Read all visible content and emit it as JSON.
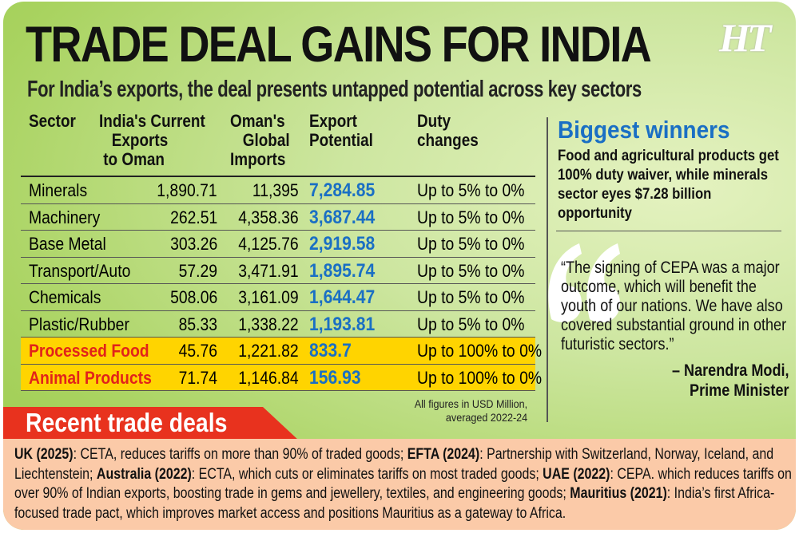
{
  "title": "TRADE DEAL GAINS FOR INDIA",
  "logo": "HT",
  "subtitle": "For India’s exports, the deal presents untapped potential across key sectors",
  "table": {
    "headers": [
      "Sector",
      "India's Current\n   Exports\n to Oman",
      "Oman's\n   Global\nImports",
      "Export\nPotential",
      "Duty\nchanges"
    ],
    "rows": [
      {
        "sector": "Minerals",
        "current": "1,890.71",
        "oman": "11,395",
        "potential": "7,284.85",
        "duty": "Up to 5% to 0%",
        "highlight": false
      },
      {
        "sector": "Machinery",
        "current": "262.51",
        "oman": "4,358.36",
        "potential": "3,687.44",
        "duty": "Up to 5% to 0%",
        "highlight": false
      },
      {
        "sector": "Base Metal",
        "current": "303.26",
        "oman": "4,125.76",
        "potential": "2,919.58",
        "duty": "Up to 5% to 0%",
        "highlight": false
      },
      {
        "sector": "Transport/Auto",
        "current": "57.29",
        "oman": "3,471.91",
        "potential": "1,895.74",
        "duty": "Up to 5% to 0%",
        "highlight": false
      },
      {
        "sector": "Chemicals",
        "current": "508.06",
        "oman": "3,161.09",
        "potential": "1,644.47",
        "duty": "Up to 5% to 0%",
        "highlight": false
      },
      {
        "sector": "Plastic/Rubber",
        "current": "85.33",
        "oman": "1,338.22",
        "potential": "1,193.81",
        "duty": "Up to 5% to 0%",
        "highlight": false
      },
      {
        "sector": "Processed Food",
        "current": "45.76",
        "oman": "1,221.82",
        "potential": "833.7",
        "duty": "Up to 100% to 0%",
        "highlight": true
      },
      {
        "sector": "Animal Products",
        "current": "71.74",
        "oman": "1,146.84",
        "potential": "156.93",
        "duty": "Up to 100% to 0%",
        "highlight": true
      }
    ],
    "note_line1": "All figures in USD Million,",
    "note_line2": "averaged 2022-24"
  },
  "winners": {
    "heading": "Biggest winners",
    "text": "Food and agricultural products get 100% duty waiver, while minerals sector eyes $7.28 billion opportunity"
  },
  "quote": {
    "text": "“The signing of CEPA was a major outcome, which will benefit the youth of our nations. We have also covered substantial ground in other futuristic sectors.”",
    "name": "– Narendra Modi,",
    "role": "Prime Minister"
  },
  "recent": {
    "heading": "Recent trade deals",
    "items": [
      {
        "label": "UK (2025)",
        "text": ": CETA, reduces tariffs on more than 90% of traded goods; "
      },
      {
        "label": "EFTA (2024)",
        "text": ": Partnership with Switzerland, Norway, Iceland, and Liechtenstein; "
      },
      {
        "label": "Australia (2022)",
        "text": ": ECTA, which cuts or eliminates tariffs on most traded goods; "
      },
      {
        "label": "UAE (2022)",
        "text": ": CEPA. which reduces tariffs on over 90% of Indian exports, boosting trade in gems and jewellery, textiles, and engineering goods; "
      },
      {
        "label": "Mauritius (2021)",
        "text": ": India’s first Africa-focused trade pact, which improves market access and positions Mauritius as a gateway to Africa."
      }
    ]
  },
  "colors": {
    "accent_blue": "#1a6fc4",
    "highlight_yellow": "#ffd400",
    "red": "#e2231a",
    "banner_red": "#e8321e",
    "deals_bg": "#fbcaa8"
  }
}
